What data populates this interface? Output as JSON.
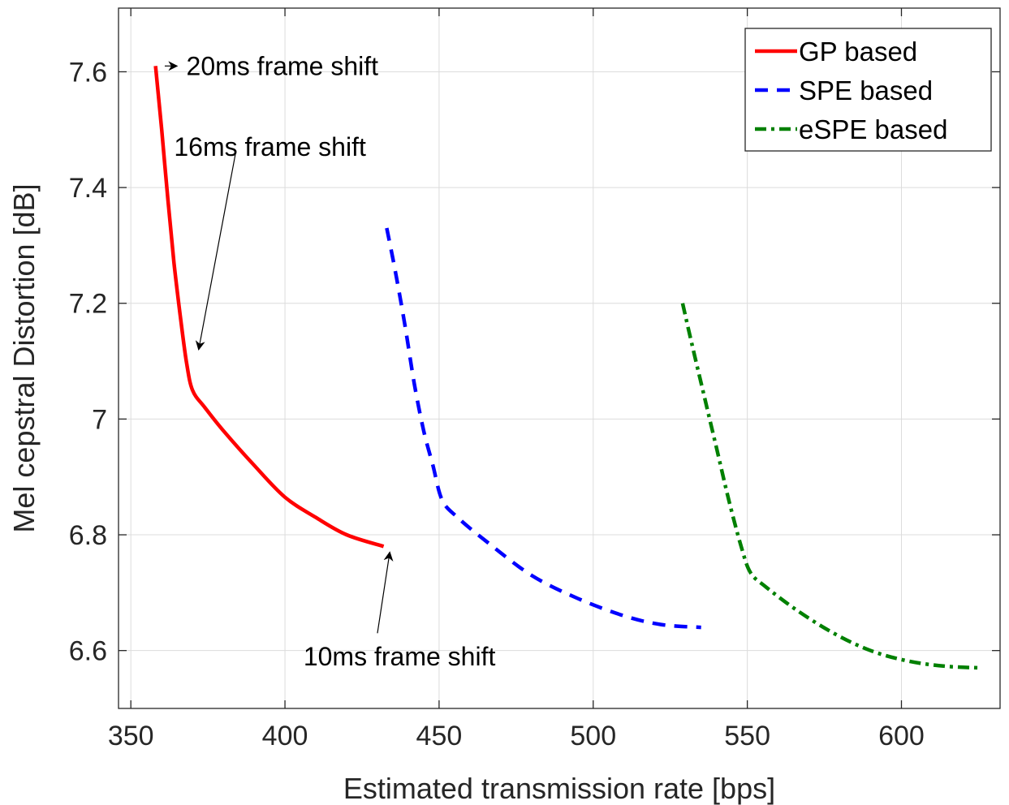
{
  "chart_data": {
    "type": "line",
    "xlabel": "Estimated transmission rate [bps]",
    "ylabel": "Mel cepstral Distortion [dB]",
    "xlim": [
      346,
      632
    ],
    "ylim": [
      6.5,
      7.71
    ],
    "xticks": [
      350,
      400,
      450,
      500,
      550,
      600
    ],
    "yticks": [
      6.6,
      6.8,
      7.0,
      7.2,
      7.4,
      7.6
    ],
    "ytick_labels": [
      "6.6",
      "6.8",
      "7",
      "7.2",
      "7.4",
      "7.6"
    ],
    "grid": true,
    "legend_position": "top-right",
    "series": [
      {
        "name": "GP based",
        "color": "#ff0000",
        "style": "solid",
        "points": [
          [
            358.0,
            7.61
          ],
          [
            360.0,
            7.5
          ],
          [
            362.0,
            7.38
          ],
          [
            364.0,
            7.27
          ],
          [
            366.0,
            7.18
          ],
          [
            368.0,
            7.1
          ],
          [
            370.0,
            7.05
          ],
          [
            374.0,
            7.02
          ],
          [
            380.0,
            6.98
          ],
          [
            390.0,
            6.92
          ],
          [
            400.0,
            6.865
          ],
          [
            410.0,
            6.83
          ],
          [
            420.0,
            6.8
          ],
          [
            432.0,
            6.78
          ]
        ]
      },
      {
        "name": "SPE based",
        "color": "#0000ff",
        "style": "dashed",
        "points": [
          [
            433.0,
            7.33
          ],
          [
            436.0,
            7.25
          ],
          [
            439.0,
            7.16
          ],
          [
            442.0,
            7.06
          ],
          [
            445.0,
            6.98
          ],
          [
            448.0,
            6.92
          ],
          [
            451.0,
            6.86
          ],
          [
            456.0,
            6.83
          ],
          [
            465.0,
            6.79
          ],
          [
            480.0,
            6.73
          ],
          [
            495.0,
            6.69
          ],
          [
            510.0,
            6.66
          ],
          [
            522.0,
            6.645
          ],
          [
            535.0,
            6.64
          ]
        ]
      },
      {
        "name": "eSPE based",
        "color": "#008000",
        "style": "dashdot",
        "points": [
          [
            529.0,
            7.2
          ],
          [
            532.0,
            7.13
          ],
          [
            536.0,
            7.04
          ],
          [
            540.0,
            6.95
          ],
          [
            544.0,
            6.86
          ],
          [
            548.0,
            6.78
          ],
          [
            551.0,
            6.735
          ],
          [
            556.0,
            6.71
          ],
          [
            566.0,
            6.67
          ],
          [
            578.0,
            6.63
          ],
          [
            590.0,
            6.6
          ],
          [
            602.0,
            6.582
          ],
          [
            614.0,
            6.573
          ],
          [
            626.0,
            6.57
          ]
        ]
      }
    ],
    "annotations": [
      {
        "text": "20ms frame shift",
        "text_at": [
          368,
          7.61
        ],
        "arrow_from": [
          361,
          7.61
        ],
        "arrow_to": [
          365,
          7.61
        ]
      },
      {
        "text": "16ms frame shift",
        "text_at": [
          364,
          7.47
        ],
        "arrow_from": [
          384,
          7.46
        ],
        "arrow_to": [
          372,
          7.12
        ]
      },
      {
        "text": "10ms frame shift",
        "text_at": [
          406,
          6.59
        ],
        "arrow_from": [
          430,
          6.63
        ],
        "arrow_to": [
          434,
          6.77
        ]
      }
    ]
  }
}
